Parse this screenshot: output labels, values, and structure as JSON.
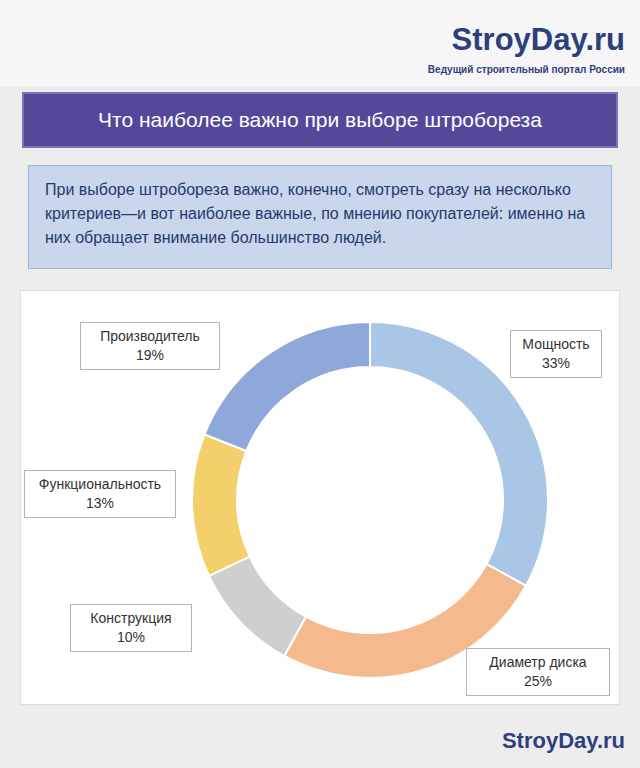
{
  "header": {
    "logo": "StroyDay.ru",
    "tagline": "Ведущий строительный портал России"
  },
  "title": "Что наиболее важно при выборе штробореза",
  "description": "При выборе штробореза важно, конечно, смотреть сразу на несколько критериев—и вот наиболее важные, по мнению покупателей: именно на них обращает внимание большинство людей.",
  "chart_data": {
    "type": "donut",
    "categories": [
      "Мощность",
      "Диаметр диска",
      "Конструкция",
      "Функциональность",
      "Производитель"
    ],
    "values": [
      33,
      25,
      10,
      13,
      19
    ],
    "value_labels": [
      "33%",
      "25%",
      "10%",
      "13%",
      "19%"
    ],
    "colors": [
      "#a9c6e6",
      "#f4b98c",
      "#cfcfcf",
      "#f3d06a",
      "#8ea8da"
    ],
    "data_labels": true
  },
  "footer": "StroyDay.ru"
}
